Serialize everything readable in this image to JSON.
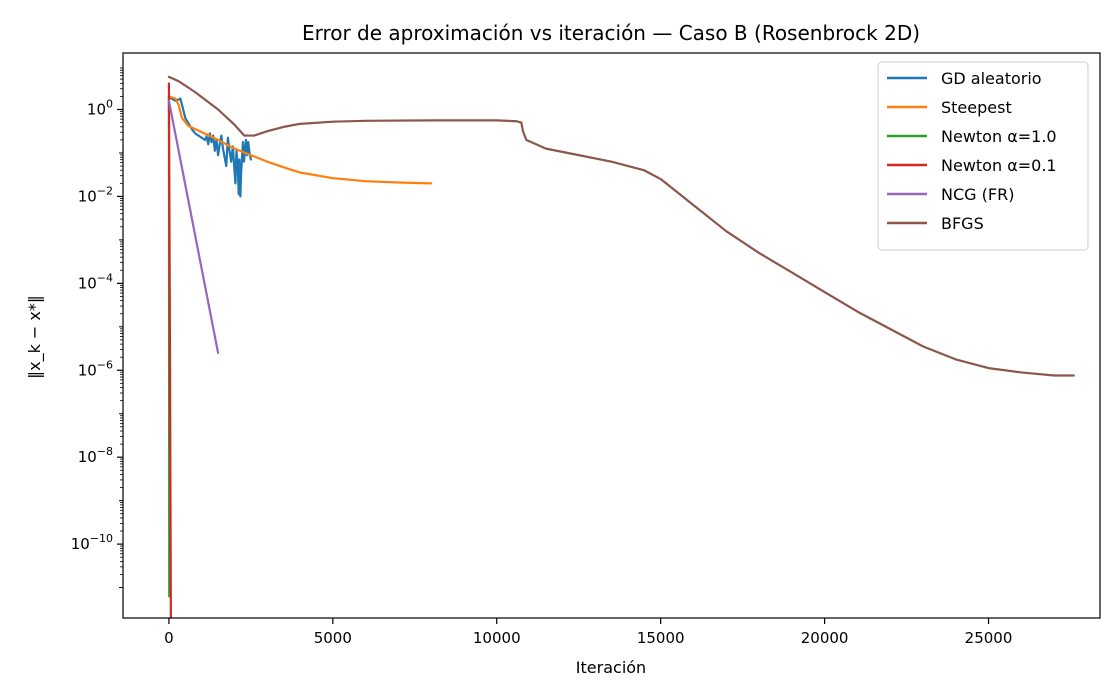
{
  "chart_data": {
    "type": "line",
    "title": "Error de aproximación vs iteración — Caso B (Rosenbrock 2D)",
    "xlabel": "Iteración",
    "ylabel": "‖x_k − x*‖",
    "y_scale": "log",
    "xlim": [
      -1400,
      28400
    ],
    "ylim_log10": [
      -11.7,
      1.3
    ],
    "x_ticks": [
      0,
      5000,
      10000,
      15000,
      20000,
      25000
    ],
    "x_tick_labels": [
      "0",
      "5000",
      "10000",
      "15000",
      "20000",
      "25000"
    ],
    "y_ticks_log10": [
      0,
      -2,
      -4,
      -6,
      -8,
      -10
    ],
    "y_tick_labels": [
      "10^0",
      "10^-2",
      "10^-4",
      "10^-6",
      "10^-8",
      "10^-10"
    ],
    "grid": false,
    "legend_position": "top-right",
    "series": [
      {
        "name": "GD aleatorio",
        "color": "#1f77b4",
        "x": [
          0,
          80,
          200,
          350,
          430,
          500,
          600,
          700,
          800,
          900,
          1000,
          1100,
          1150,
          1200,
          1250,
          1300,
          1350,
          1400,
          1450,
          1500,
          1550,
          1600,
          1650,
          1700,
          1750,
          1800,
          1850,
          1900,
          1950,
          2000,
          2030,
          2060,
          2100,
          2130,
          2150,
          2180,
          2200,
          2230,
          2260,
          2290,
          2320,
          2350,
          2380,
          2420,
          2460,
          2500
        ],
        "y_log10": [
          0.3,
          0.25,
          0.2,
          0.25,
          0.02,
          -0.2,
          -0.32,
          -0.45,
          -0.55,
          -0.6,
          -0.65,
          -0.7,
          -0.62,
          -0.8,
          -0.55,
          -0.75,
          -0.6,
          -0.95,
          -0.7,
          -1.05,
          -0.8,
          -0.6,
          -0.9,
          -1.1,
          -1.3,
          -0.65,
          -0.95,
          -1.2,
          -0.85,
          -1.4,
          -1.7,
          -0.95,
          -1.3,
          -1.95,
          -1.15,
          -2.0,
          -1.5,
          -1.1,
          -0.75,
          -1.2,
          -0.95,
          -0.7,
          -1.05,
          -0.75,
          -1.0,
          -1.15
        ]
      },
      {
        "name": "Steepest",
        "color": "#ff7f0e",
        "x": [
          0,
          200,
          300,
          350,
          400,
          600,
          1000,
          1500,
          2000,
          2500,
          3000,
          3500,
          4000,
          5000,
          6000,
          7000,
          8000
        ],
        "y_log10": [
          0.3,
          0.25,
          0.1,
          -0.05,
          -0.2,
          -0.38,
          -0.52,
          -0.7,
          -0.9,
          -1.05,
          -1.2,
          -1.33,
          -1.45,
          -1.58,
          -1.65,
          -1.68,
          -1.7
        ]
      },
      {
        "name": "Newton α=1.0",
        "color": "#2ca02c",
        "x": [
          0,
          5,
          10
        ],
        "y_log10": [
          0.3,
          -5.0,
          -11.2
        ]
      },
      {
        "name": "Newton α=0.1",
        "color": "#d62728",
        "x": [
          0,
          30,
          60
        ],
        "y_log10": [
          0.6,
          -5.0,
          -11.7
        ]
      },
      {
        "name": "NCG (FR)",
        "color": "#9467bd",
        "x": [
          0,
          1500
        ],
        "y_log10": [
          0.2,
          -5.6
        ]
      },
      {
        "name": "BFGS",
        "color": "#8c564b",
        "x": [
          0,
          300,
          800,
          1500,
          2000,
          2300,
          2600,
          3000,
          3500,
          4000,
          5000,
          6000,
          8000,
          10000,
          10600,
          10750,
          10800,
          10900,
          11500,
          12500,
          13500,
          14500,
          15000,
          16000,
          17000,
          18000,
          19000,
          20000,
          21000,
          22000,
          23000,
          24000,
          25000,
          26000,
          27000,
          27600
        ],
        "y_log10": [
          0.75,
          0.65,
          0.4,
          0.0,
          -0.35,
          -0.6,
          -0.6,
          -0.5,
          -0.4,
          -0.33,
          -0.28,
          -0.26,
          -0.25,
          -0.25,
          -0.27,
          -0.3,
          -0.5,
          -0.7,
          -0.9,
          -1.05,
          -1.2,
          -1.4,
          -1.6,
          -2.2,
          -2.8,
          -3.3,
          -3.75,
          -4.2,
          -4.65,
          -5.05,
          -5.45,
          -5.75,
          -5.95,
          -6.05,
          -6.12,
          -6.12
        ]
      }
    ]
  }
}
